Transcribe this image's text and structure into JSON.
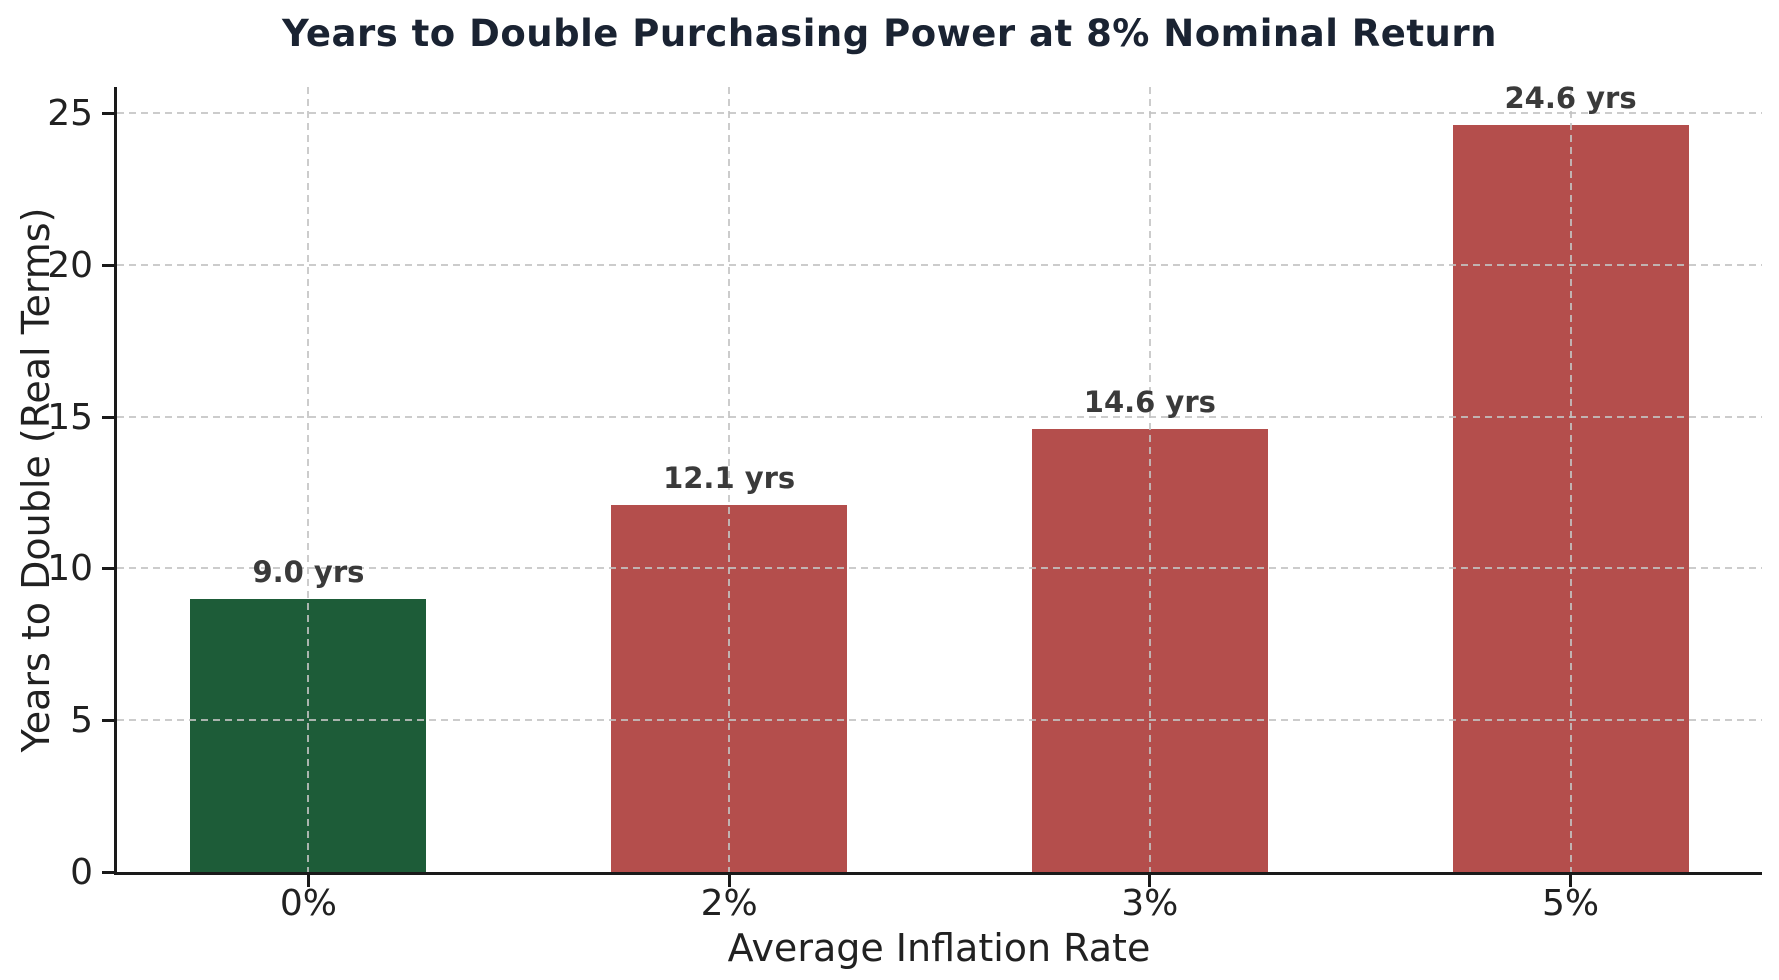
{
  "chart_data": {
    "type": "bar",
    "title": "Years to Double Purchasing Power at 8% Nominal Return",
    "xlabel": "Average Inflation Rate",
    "ylabel": "Years to Double (Real Terms)",
    "categories": [
      "0%",
      "2%",
      "3%",
      "5%"
    ],
    "values": [
      9.0,
      12.1,
      14.6,
      24.6
    ],
    "bar_labels": [
      "9.0 yrs",
      "12.1 yrs",
      "14.6 yrs",
      "24.6 yrs"
    ],
    "bar_colors": [
      "#1d5c38",
      "#b44e4c",
      "#b44e4c",
      "#b44e4c"
    ],
    "yticks": [
      0,
      5,
      10,
      15,
      20,
      25
    ],
    "ylim": [
      0,
      25
    ],
    "legend_position": "none",
    "grid": "dashed gray, horizontal at each y tick and vertical at each bar center, drawn above bars",
    "colors": {
      "green_bar": "#1d5c38",
      "red_bar": "#b44e4c",
      "title_text": "#1a2332",
      "tick_text": "#212121",
      "value_label_text": "#3a3a3a",
      "gridline": "#c3c3c3",
      "axis_spine": "#1a1a1a",
      "background": "#ffffff"
    }
  }
}
